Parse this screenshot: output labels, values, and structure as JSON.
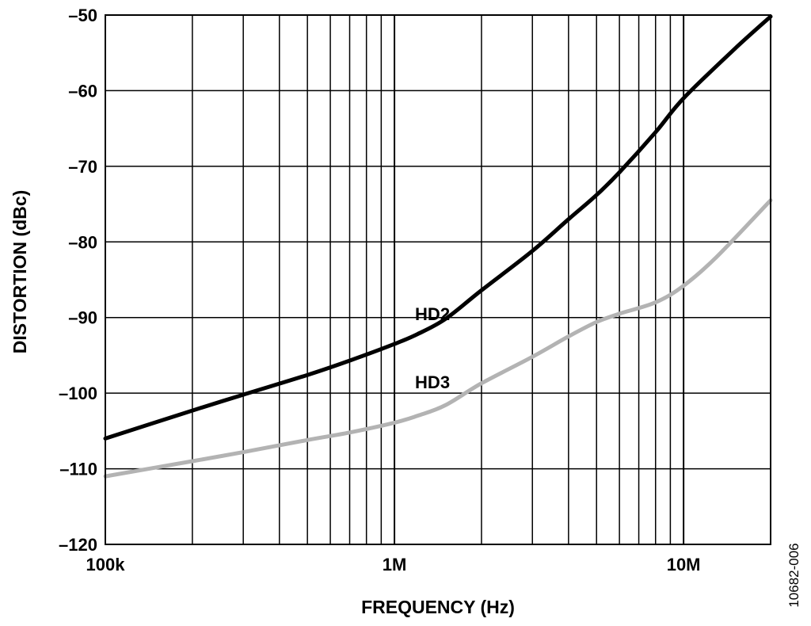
{
  "chart_data": {
    "type": "line",
    "xlabel": "FREQUENCY (Hz)",
    "ylabel": "DISTORTION (dBc)",
    "x_scale": "log",
    "xlim": [
      100000,
      20000000
    ],
    "ylim": [
      -120,
      -50
    ],
    "x_tick_values": [
      100000,
      1000000,
      10000000
    ],
    "x_tick_labels": [
      "100k",
      "1M",
      "10M"
    ],
    "y_ticks": [
      {
        "value": -50,
        "label": "–50"
      },
      {
        "value": -60,
        "label": "–60"
      },
      {
        "value": -70,
        "label": "–70"
      },
      {
        "value": -80,
        "label": "–80"
      },
      {
        "value": -90,
        "label": "–90"
      },
      {
        "value": -100,
        "label": "–100"
      },
      {
        "value": -110,
        "label": "–110"
      },
      {
        "value": -120,
        "label": "–120"
      }
    ],
    "grid": true,
    "series": [
      {
        "name": "HD2",
        "color": "#000000",
        "label_at": [
          1000000,
          -89.5
        ],
        "x": [
          100000,
          200000,
          300000,
          500000,
          700000,
          1000000,
          1200000,
          1500000,
          2000000,
          3000000,
          4000000,
          5000000,
          6000000,
          8000000,
          10000000,
          15000000,
          20000000
        ],
        "y": [
          -106,
          -102.3,
          -100.2,
          -97.6,
          -95.7,
          -93.5,
          -92.2,
          -90.2,
          -86.4,
          -81.2,
          -77.0,
          -73.8,
          -70.8,
          -65.5,
          -61.0,
          -54.5,
          -50.2
        ]
      },
      {
        "name": "HD3",
        "color": "#b3b3b3",
        "label_at": [
          1000000,
          -98.5
        ],
        "x": [
          100000,
          200000,
          300000,
          500000,
          700000,
          1000000,
          1200000,
          1500000,
          2000000,
          3000000,
          4000000,
          5000000,
          6000000,
          8000000,
          10000000,
          13000000,
          20000000
        ],
        "y": [
          -111,
          -109.0,
          -107.8,
          -106.2,
          -105.2,
          -103.9,
          -103.0,
          -101.6,
          -98.7,
          -95.2,
          -92.5,
          -90.6,
          -89.5,
          -88.0,
          -85.8,
          -82.0,
          -74.5
        ]
      }
    ]
  },
  "figure_id": "10682-006"
}
